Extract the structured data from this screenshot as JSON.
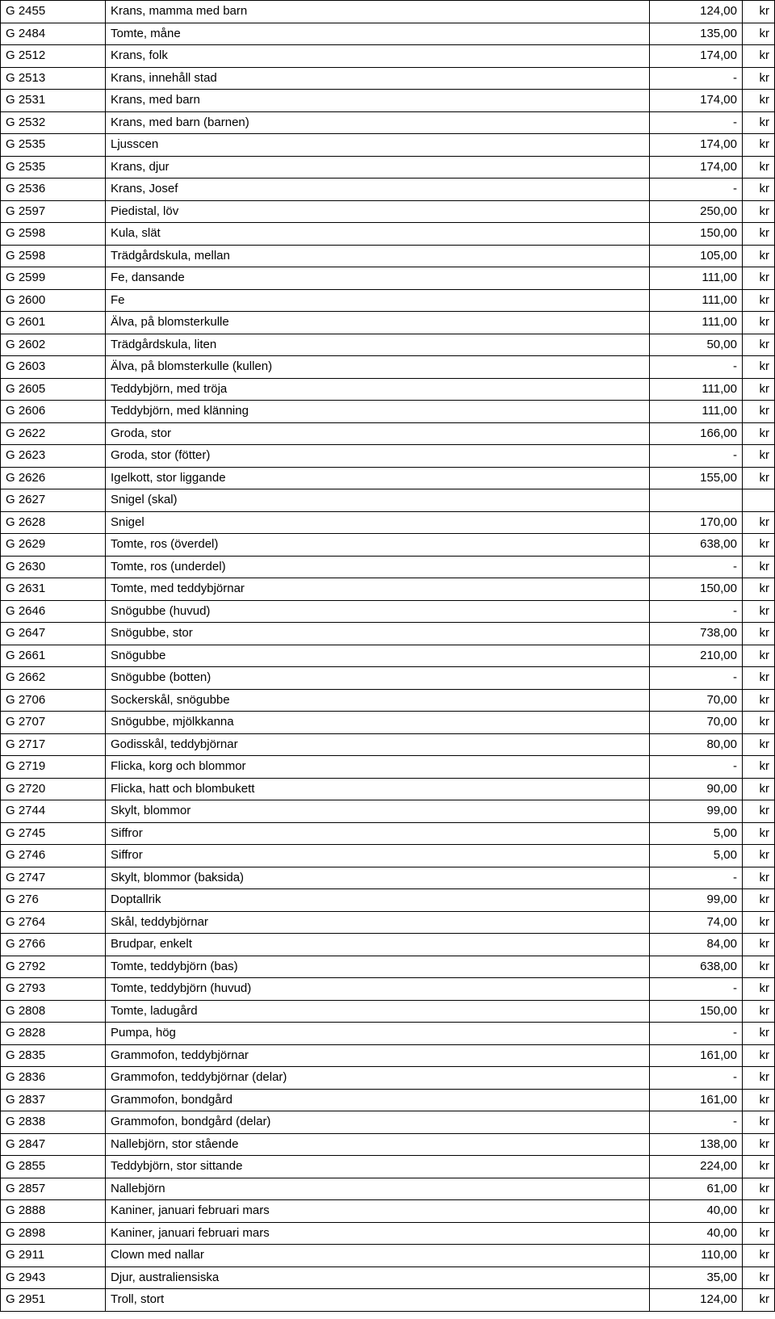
{
  "currency_label": "kr",
  "dash": "-",
  "rows": [
    {
      "id": "G 2455",
      "desc": "Krans, mamma med barn",
      "price": "124,00"
    },
    {
      "id": "G 2484",
      "desc": "Tomte, måne",
      "price": "135,00"
    },
    {
      "id": "G 2512",
      "desc": "Krans, folk",
      "price": "174,00"
    },
    {
      "id": "G 2513",
      "desc": "Krans, innehåll stad",
      "price": "-"
    },
    {
      "id": "G 2531",
      "desc": "Krans, med barn",
      "price": "174,00"
    },
    {
      "id": "G 2532",
      "desc": "Krans, med barn (barnen)",
      "price": "-"
    },
    {
      "id": "G 2535",
      "desc": "Ljusscen",
      "price": "174,00"
    },
    {
      "id": "G 2535",
      "desc": "Krans, djur",
      "price": "174,00"
    },
    {
      "id": "G 2536",
      "desc": "Krans, Josef",
      "price": "-"
    },
    {
      "id": "G 2597",
      "desc": "Piedistal, löv",
      "price": "250,00"
    },
    {
      "id": "G 2598",
      "desc": "Kula, slät",
      "price": "150,00"
    },
    {
      "id": "G 2598",
      "desc": "Trädgårdskula, mellan",
      "price": "105,00"
    },
    {
      "id": "G 2599",
      "desc": "Fe, dansande",
      "price": "111,00"
    },
    {
      "id": "G 2600",
      "desc": "Fe",
      "price": "111,00"
    },
    {
      "id": "G 2601",
      "desc": "Älva, på blomsterkulle",
      "price": "111,00"
    },
    {
      "id": "G 2602",
      "desc": "Trädgårdskula, liten",
      "price": "50,00"
    },
    {
      "id": "G 2603",
      "desc": "Älva, på blomsterkulle (kullen)",
      "price": "-"
    },
    {
      "id": "G 2605",
      "desc": "Teddybjörn, med tröja",
      "price": "111,00"
    },
    {
      "id": "G 2606",
      "desc": "Teddybjörn, med klänning",
      "price": "111,00"
    },
    {
      "id": "G 2622",
      "desc": "Groda, stor",
      "price": "166,00"
    },
    {
      "id": "G 2623",
      "desc": "Groda, stor (fötter)",
      "price": "-"
    },
    {
      "id": "G 2626",
      "desc": "Igelkott, stor liggande",
      "price": "155,00"
    },
    {
      "id": "G 2627",
      "desc": "Snigel (skal)",
      "price": null
    },
    {
      "id": "G 2628",
      "desc": "Snigel",
      "price": "170,00"
    },
    {
      "id": "G 2629",
      "desc": "Tomte, ros (överdel)",
      "price": "638,00"
    },
    {
      "id": "G 2630",
      "desc": "Tomte, ros (underdel)",
      "price": "-"
    },
    {
      "id": "G 2631",
      "desc": "Tomte, med teddybjörnar",
      "price": "150,00"
    },
    {
      "id": "G 2646",
      "desc": "Snögubbe (huvud)",
      "price": "-"
    },
    {
      "id": "G 2647",
      "desc": "Snögubbe, stor",
      "price": "738,00"
    },
    {
      "id": "G 2661",
      "desc": "Snögubbe",
      "price": "210,00"
    },
    {
      "id": "G 2662",
      "desc": "Snögubbe (botten)",
      "price": "-"
    },
    {
      "id": "G 2706",
      "desc": "Sockerskål, snögubbe",
      "price": "70,00"
    },
    {
      "id": "G 2707",
      "desc": "Snögubbe, mjölkkanna",
      "price": "70,00"
    },
    {
      "id": "G 2717",
      "desc": "Godisskål, teddybjörnar",
      "price": "80,00"
    },
    {
      "id": "G 2719",
      "desc": "Flicka, korg och blommor",
      "price": "-"
    },
    {
      "id": "G 2720",
      "desc": "Flicka, hatt och blombukett",
      "price": "90,00"
    },
    {
      "id": "G 2744",
      "desc": "Skylt, blommor",
      "price": "99,00"
    },
    {
      "id": "G 2745",
      "desc": "Siffror",
      "price": "5,00"
    },
    {
      "id": "G 2746",
      "desc": "Siffror",
      "price": "5,00"
    },
    {
      "id": "G 2747",
      "desc": "Skylt, blommor (baksida)",
      "price": "-"
    },
    {
      "id": "G 276",
      "desc": "Doptallrik",
      "price": "99,00"
    },
    {
      "id": "G 2764",
      "desc": "Skål, teddybjörnar",
      "price": "74,00"
    },
    {
      "id": "G 2766",
      "desc": "Brudpar, enkelt",
      "price": "84,00"
    },
    {
      "id": "G 2792",
      "desc": "Tomte, teddybjörn (bas)",
      "price": "638,00"
    },
    {
      "id": "G 2793",
      "desc": "Tomte, teddybjörn (huvud)",
      "price": "-"
    },
    {
      "id": "G 2808",
      "desc": "Tomte, ladugård",
      "price": "150,00"
    },
    {
      "id": "G 2828",
      "desc": "Pumpa, hög",
      "price": "-"
    },
    {
      "id": "G 2835",
      "desc": "Grammofon, teddybjörnar",
      "price": "161,00"
    },
    {
      "id": "G 2836",
      "desc": "Grammofon, teddybjörnar (delar)",
      "price": "-"
    },
    {
      "id": "G 2837",
      "desc": "Grammofon, bondgård",
      "price": "161,00"
    },
    {
      "id": "G 2838",
      "desc": "Grammofon, bondgård (delar)",
      "price": "-"
    },
    {
      "id": "G 2847",
      "desc": "Nallebjörn, stor stående",
      "price": "138,00"
    },
    {
      "id": "G 2855",
      "desc": "Teddybjörn, stor sittande",
      "price": "224,00"
    },
    {
      "id": "G 2857",
      "desc": "Nallebjörn",
      "price": "61,00"
    },
    {
      "id": "G 2888",
      "desc": "Kaniner, januari februari mars",
      "price": "40,00"
    },
    {
      "id": "G 2898",
      "desc": "Kaniner, januari februari mars",
      "price": "40,00"
    },
    {
      "id": "G 2911",
      "desc": "Clown med nallar",
      "price": "110,00"
    },
    {
      "id": "G 2943",
      "desc": "Djur, australiensiska",
      "price": "35,00"
    },
    {
      "id": "G 2951",
      "desc": "Troll, stort",
      "price": "124,00"
    }
  ]
}
